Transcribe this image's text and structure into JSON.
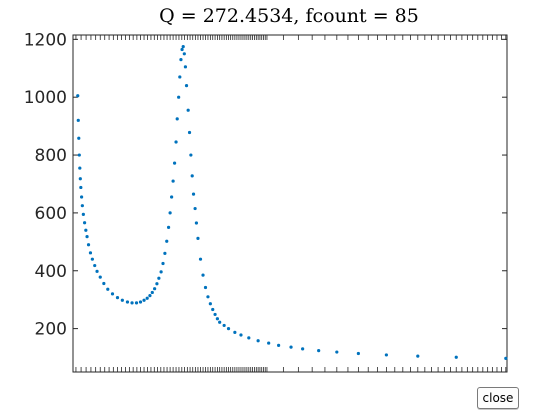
{
  "chart_data": {
    "type": "scatter",
    "title": "Q = 272.4534, fcount = 85",
    "xlabel": "",
    "ylabel": "",
    "ylim": [
      50,
      1215
    ],
    "yticks": [
      200,
      400,
      600,
      800,
      1000,
      1200
    ],
    "xscale": "log",
    "grid": false,
    "marker_color": "#0072bd",
    "series": [
      {
        "points": [
          [
            0.3335,
            1005
          ],
          [
            0.3345,
            920
          ],
          [
            0.3355,
            858
          ],
          [
            0.3365,
            800
          ],
          [
            0.3375,
            755
          ],
          [
            0.3385,
            718
          ],
          [
            0.3395,
            688
          ],
          [
            0.341,
            655
          ],
          [
            0.3425,
            625
          ],
          [
            0.3445,
            595
          ],
          [
            0.347,
            566
          ],
          [
            0.3495,
            540
          ],
          [
            0.352,
            518
          ],
          [
            0.355,
            490
          ],
          [
            0.359,
            462
          ],
          [
            0.363,
            440
          ],
          [
            0.368,
            418
          ],
          [
            0.373,
            398
          ],
          [
            0.38,
            378
          ],
          [
            0.388,
            356
          ],
          [
            0.397,
            336
          ],
          [
            0.408,
            320
          ],
          [
            0.42,
            307
          ],
          [
            0.432,
            298
          ],
          [
            0.445,
            292
          ],
          [
            0.457,
            289
          ],
          [
            0.469,
            289
          ],
          [
            0.48,
            292
          ],
          [
            0.49,
            298
          ],
          [
            0.499,
            305
          ],
          [
            0.507,
            314
          ],
          [
            0.514,
            325
          ],
          [
            0.521,
            338
          ],
          [
            0.528,
            355
          ],
          [
            0.534,
            374
          ],
          [
            0.541,
            396
          ],
          [
            0.547,
            425
          ],
          [
            0.553,
            460
          ],
          [
            0.559,
            502
          ],
          [
            0.565,
            550
          ],
          [
            0.57,
            600
          ],
          [
            0.575,
            655
          ],
          [
            0.58,
            710
          ],
          [
            0.585,
            772
          ],
          [
            0.59,
            845
          ],
          [
            0.594,
            925
          ],
          [
            0.599,
            1000
          ],
          [
            0.603,
            1070
          ],
          [
            0.607,
            1130
          ],
          [
            0.611,
            1165
          ],
          [
            0.615,
            1175
          ],
          [
            0.619,
            1150
          ],
          [
            0.623,
            1105
          ],
          [
            0.627,
            1040
          ],
          [
            0.633,
            955
          ],
          [
            0.638,
            878
          ],
          [
            0.643,
            800
          ],
          [
            0.648,
            728
          ],
          [
            0.653,
            665
          ],
          [
            0.659,
            615
          ],
          [
            0.664,
            565
          ],
          [
            0.67,
            512
          ],
          [
            0.68,
            440
          ],
          [
            0.69,
            385
          ],
          [
            0.7,
            342
          ],
          [
            0.71,
            310
          ],
          [
            0.72,
            286
          ],
          [
            0.73,
            266
          ],
          [
            0.74,
            249
          ],
          [
            0.75,
            234
          ],
          [
            0.76,
            222
          ],
          [
            0.78,
            211
          ],
          [
            0.8,
            200
          ],
          [
            0.83,
            187
          ],
          [
            0.86,
            178
          ],
          [
            0.9,
            168
          ],
          [
            0.95,
            158
          ],
          [
            1.01,
            150
          ],
          [
            1.07,
            142
          ],
          [
            1.15,
            136
          ],
          [
            1.23,
            130
          ],
          [
            1.35,
            124
          ],
          [
            1.5,
            119
          ],
          [
            1.7,
            114
          ],
          [
            2.0,
            109
          ],
          [
            2.4,
            105
          ],
          [
            3.0,
            101
          ],
          [
            4.0,
            97
          ]
        ]
      }
    ]
  },
  "close_button": {
    "label": "close"
  }
}
